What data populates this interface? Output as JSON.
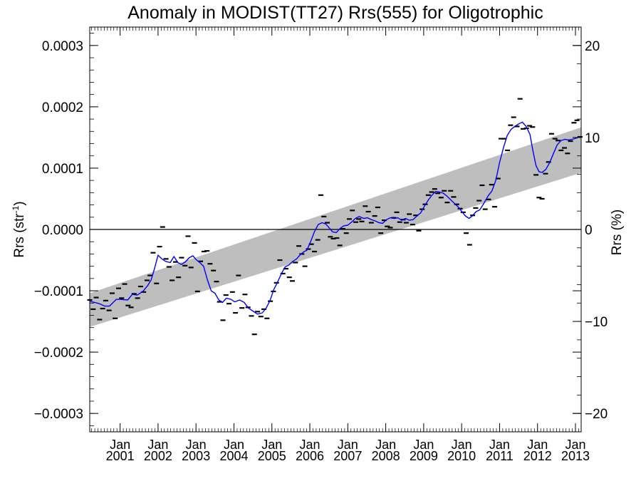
{
  "chart_data": {
    "type": "line",
    "title": "Anomaly in MODIST(TT27) Rrs(555) for Oligotrophic",
    "ylabel_left": "Rrs (str",
    "ylabel_left_sup": "-1",
    "ylabel_left_close": ")",
    "ylabel_right": "Rrs (%)",
    "xlim": [
      2000.2,
      2013.15
    ],
    "ylim": [
      -0.00033,
      0.00033
    ],
    "y2lim": [
      -22,
      22
    ],
    "yticks": [
      {
        "value": 0.0003,
        "label": "0.0003"
      },
      {
        "value": 0.0002,
        "label": "0.0002"
      },
      {
        "value": 0.0001,
        "label": "0.0001"
      },
      {
        "value": 0.0,
        "label": "0.0000"
      },
      {
        "value": -0.0001,
        "label": "−0.0001"
      },
      {
        "value": -0.0002,
        "label": "−0.0002"
      },
      {
        "value": -0.0003,
        "label": "−0.0003"
      }
    ],
    "y2ticks": [
      {
        "value": 20,
        "label": "20"
      },
      {
        "value": 10,
        "label": "10"
      },
      {
        "value": 0,
        "label": "0"
      },
      {
        "value": -10,
        "label": "−10"
      },
      {
        "value": -20,
        "label": "−20"
      }
    ],
    "xticks": [
      {
        "value": 2001,
        "month": "Jan",
        "year": "2001"
      },
      {
        "value": 2002,
        "month": "Jan",
        "year": "2002"
      },
      {
        "value": 2003,
        "month": "Jan",
        "year": "2003"
      },
      {
        "value": 2004,
        "month": "Jan",
        "year": "2004"
      },
      {
        "value": 2005,
        "month": "Jan",
        "year": "2005"
      },
      {
        "value": 2006,
        "month": "Jan",
        "year": "2006"
      },
      {
        "value": 2007,
        "month": "Jan",
        "year": "2007"
      },
      {
        "value": 2008,
        "month": "Jan",
        "year": "2008"
      },
      {
        "value": 2009,
        "month": "Jan",
        "year": "2009"
      },
      {
        "value": 2010,
        "month": "Jan",
        "year": "2010"
      },
      {
        "value": 2011,
        "month": "Jan",
        "year": "2011"
      },
      {
        "value": 2012,
        "month": "Jan",
        "year": "2012"
      },
      {
        "value": 2013,
        "month": "Jan",
        "year": "2013"
      }
    ],
    "zero_line": 0.0,
    "band": {
      "color": "#bebebe",
      "start": {
        "x": 2000.2,
        "low": -0.000159,
        "high": -0.000104
      },
      "end": {
        "x": 2013.15,
        "low": 9.25e-05,
        "high": 0.0001665
      }
    },
    "monthly_points": {
      "color": "#000000",
      "values": [
        [
          2000.2,
          -0.000115
        ],
        [
          2000.29,
          -0.00013
        ],
        [
          2000.37,
          -0.000111
        ],
        [
          2000.46,
          -0.000147
        ],
        [
          2000.54,
          -0.000129
        ],
        [
          2000.62,
          -0.000116
        ],
        [
          2000.71,
          -0.000132
        ],
        [
          2000.79,
          -0.000104
        ],
        [
          2000.87,
          -0.000145
        ],
        [
          2000.96,
          -9.6e-05
        ],
        [
          2001.04,
          -0.000112
        ],
        [
          2001.12,
          -8.9e-05
        ],
        [
          2001.21,
          -0.000124
        ],
        [
          2001.29,
          -0.000127
        ],
        [
          2001.37,
          -0.000105
        ],
        [
          2001.46,
          -0.000112
        ],
        [
          2001.54,
          -9.3e-05
        ],
        [
          2001.62,
          -0.000102
        ],
        [
          2001.71,
          -8.3e-05
        ],
        [
          2001.79,
          -7.5e-05
        ],
        [
          2001.87,
          -3.8e-05
        ],
        [
          2001.96,
          -8.8e-05
        ],
        [
          2002.04,
          -2.8e-05
        ],
        [
          2002.12,
          4e-06
        ],
        [
          2002.21,
          -4.8e-05
        ],
        [
          2002.29,
          -6.1e-05
        ],
        [
          2002.37,
          -8.3e-05
        ],
        [
          2002.46,
          -5.3e-05
        ],
        [
          2002.54,
          -7.8e-05
        ],
        [
          2002.62,
          -4.6e-05
        ],
        [
          2002.71,
          -5.9e-05
        ],
        [
          2002.79,
          -1.1e-05
        ],
        [
          2002.87,
          -6.2e-05
        ],
        [
          2002.96,
          -2.2e-05
        ],
        [
          2003.04,
          -0.000101
        ],
        [
          2003.12,
          -5.2e-05
        ],
        [
          2003.21,
          -3.6e-05
        ],
        [
          2003.29,
          -3.5e-05
        ],
        [
          2003.37,
          -5.6e-05
        ],
        [
          2003.46,
          -6.7e-05
        ],
        [
          2003.54,
          -8.5e-05
        ],
        [
          2003.62,
          -0.000118
        ],
        [
          2003.71,
          -0.000148
        ],
        [
          2003.79,
          -0.000107
        ],
        [
          2003.87,
          -0.000121
        ],
        [
          2003.96,
          -0.000102
        ],
        [
          2004.04,
          -0.000136
        ],
        [
          2004.12,
          -7.5e-05
        ],
        [
          2004.21,
          -0.000128
        ],
        [
          2004.29,
          -0.000106
        ],
        [
          2004.37,
          -0.000127
        ],
        [
          2004.46,
          -0.000141
        ],
        [
          2004.54,
          -0.000171
        ],
        [
          2004.62,
          -0.000134
        ],
        [
          2004.71,
          -0.000142
        ],
        [
          2004.79,
          -0.00013
        ],
        [
          2004.87,
          -0.000145
        ],
        [
          2004.96,
          -0.000117
        ],
        [
          2005.04,
          -0.000101
        ],
        [
          2005.12,
          -8.7e-05
        ],
        [
          2005.21,
          -5e-05
        ],
        [
          2005.29,
          -7.2e-05
        ],
        [
          2005.37,
          -6.4e-05
        ],
        [
          2005.46,
          -7.8e-05
        ],
        [
          2005.54,
          -8.4e-05
        ],
        [
          2005.62,
          -5.4e-05
        ],
        [
          2005.71,
          -2.7e-05
        ],
        [
          2005.79,
          -4e-05
        ],
        [
          2005.87,
          -6e-05
        ],
        [
          2005.96,
          -3.2e-05
        ],
        [
          2006.04,
          -2.4e-05
        ],
        [
          2006.12,
          -3.6e-05
        ],
        [
          2006.21,
          -1.7e-05
        ],
        [
          2006.29,
          5.6e-05
        ],
        [
          2006.37,
          2.1e-05
        ],
        [
          2006.46,
          1.1e-05
        ],
        [
          2006.54,
          -1.2e-05
        ],
        [
          2006.62,
          -1.5e-05
        ],
        [
          2006.71,
          -1.4e-05
        ],
        [
          2006.79,
          -2.6e-05
        ],
        [
          2006.87,
          1e-06
        ],
        [
          2006.96,
          -6e-06
        ],
        [
          2007.04,
          1.7e-05
        ],
        [
          2007.12,
          3.1e-05
        ],
        [
          2007.21,
          1.2e-05
        ],
        [
          2007.29,
          1.7e-05
        ],
        [
          2007.37,
          1.3e-05
        ],
        [
          2007.46,
          3.8e-05
        ],
        [
          2007.54,
          2.9e-05
        ],
        [
          2007.62,
          1.1e-05
        ],
        [
          2007.71,
          2.2e-05
        ],
        [
          2007.79,
          3.6e-05
        ],
        [
          2007.87,
          -6e-06
        ],
        [
          2007.96,
          1.5e-05
        ],
        [
          2008.04,
          5e-06
        ],
        [
          2008.12,
          3e-06
        ],
        [
          2008.21,
          1.9e-05
        ],
        [
          2008.29,
          2.8e-05
        ],
        [
          2008.37,
          1.2e-05
        ],
        [
          2008.46,
          1.6e-05
        ],
        [
          2008.54,
          1.1e-05
        ],
        [
          2008.62,
          2.5e-05
        ],
        [
          2008.71,
          8e-06
        ],
        [
          2008.79,
          2.3e-05
        ],
        [
          2008.87,
          -2e-06
        ],
        [
          2008.96,
          3.3e-05
        ],
        [
          2009.04,
          4.1e-05
        ],
        [
          2009.12,
          5.6e-05
        ],
        [
          2009.21,
          6.1e-05
        ],
        [
          2009.29,
          6.6e-05
        ],
        [
          2009.37,
          5.9e-05
        ],
        [
          2009.46,
          5.2e-05
        ],
        [
          2009.54,
          6.3e-05
        ],
        [
          2009.62,
          4.4e-05
        ],
        [
          2009.71,
          6.3e-05
        ],
        [
          2009.79,
          5.3e-05
        ],
        [
          2009.87,
          4.1e-05
        ],
        [
          2009.96,
          3.4e-05
        ],
        [
          2010.04,
          2.8e-05
        ],
        [
          2010.12,
          -6e-06
        ],
        [
          2010.21,
          -2.5e-05
        ],
        [
          2010.29,
          2.3e-05
        ],
        [
          2010.37,
          3.5e-05
        ],
        [
          2010.46,
          4.7e-05
        ],
        [
          2010.54,
          7.2e-05
        ],
        [
          2010.62,
          3.3e-05
        ],
        [
          2010.71,
          4.9e-05
        ],
        [
          2010.79,
          7.3e-05
        ],
        [
          2010.87,
          3.7e-05
        ],
        [
          2010.96,
          8.3e-05
        ],
        [
          2011.04,
          0.000148
        ],
        [
          2011.12,
          0.000148
        ],
        [
          2011.21,
          0.000129
        ],
        [
          2011.29,
          0.00017
        ],
        [
          2011.37,
          0.000183
        ],
        [
          2011.46,
          0.000168
        ],
        [
          2011.54,
          0.000213
        ],
        [
          2011.62,
          0.000164
        ],
        [
          2011.71,
          0.000165
        ],
        [
          2011.79,
          0.000169
        ],
        [
          2011.87,
          0.000167
        ],
        [
          2011.96,
          8.9e-05
        ],
        [
          2012.04,
          5.2e-05
        ],
        [
          2012.12,
          5e-05
        ],
        [
          2012.21,
          9.1e-05
        ],
        [
          2012.29,
          0.00011
        ],
        [
          2012.37,
          0.000156
        ],
        [
          2012.46,
          0.000148
        ],
        [
          2012.54,
          0.000145
        ],
        [
          2012.62,
          0.000129
        ],
        [
          2012.71,
          0.000133
        ],
        [
          2012.79,
          0.000124
        ],
        [
          2012.87,
          0.000144
        ],
        [
          2012.96,
          0.000174
        ],
        [
          2013.04,
          0.000178
        ],
        [
          2013.12,
          0.000151
        ]
      ]
    },
    "smoothed_line": {
      "color": "#0000ff",
      "values": [
        [
          2000.2,
          -0.000117
        ],
        [
          2000.45,
          -0.000121
        ],
        [
          2000.6,
          -0.000125
        ],
        [
          2000.72,
          -0.000125
        ],
        [
          2000.9,
          -0.000114
        ],
        [
          2001.0,
          -0.000114
        ],
        [
          2001.2,
          -0.000115
        ],
        [
          2001.32,
          -0.000106
        ],
        [
          2001.45,
          -0.000107
        ],
        [
          2001.6,
          -0.000101
        ],
        [
          2001.72,
          -9.2e-05
        ],
        [
          2001.82,
          -8.2e-05
        ],
        [
          2001.92,
          -6.1e-05
        ],
        [
          2002.0,
          -4.2e-05
        ],
        [
          2002.1,
          -4.8e-05
        ],
        [
          2002.2,
          -5.2e-05
        ],
        [
          2002.32,
          -5.4e-05
        ],
        [
          2002.42,
          -4.4e-05
        ],
        [
          2002.52,
          -5.4e-05
        ],
        [
          2002.62,
          -5.7e-05
        ],
        [
          2002.72,
          -5.3e-05
        ],
        [
          2002.82,
          -4.6e-05
        ],
        [
          2002.92,
          -4.3e-05
        ],
        [
          2003.0,
          -4.9e-05
        ],
        [
          2003.1,
          -5.4e-05
        ],
        [
          2003.2,
          -6e-05
        ],
        [
          2003.3,
          -8.2e-05
        ],
        [
          2003.4,
          -0.0001
        ],
        [
          2003.5,
          -0.000104
        ],
        [
          2003.6,
          -0.000115
        ],
        [
          2003.7,
          -0.000119
        ],
        [
          2003.8,
          -0.000112
        ],
        [
          2003.92,
          -0.000114
        ],
        [
          2004.02,
          -0.000118
        ],
        [
          2004.15,
          -0.000115
        ],
        [
          2004.27,
          -0.000119
        ],
        [
          2004.38,
          -0.000128
        ],
        [
          2004.5,
          -0.000133
        ],
        [
          2004.62,
          -0.000138
        ],
        [
          2004.75,
          -0.000136
        ],
        [
          2004.85,
          -0.000128
        ],
        [
          2004.95,
          -0.000116
        ],
        [
          2005.05,
          -9.8e-05
        ],
        [
          2005.15,
          -8.6e-05
        ],
        [
          2005.25,
          -7.2e-05
        ],
        [
          2005.35,
          -6.1e-05
        ],
        [
          2005.45,
          -5.8e-05
        ],
        [
          2005.55,
          -5.2e-05
        ],
        [
          2005.65,
          -4.8e-05
        ],
        [
          2005.75,
          -4.1e-05
        ],
        [
          2005.85,
          -3.6e-05
        ],
        [
          2005.92,
          -3.4e-05
        ],
        [
          2006.02,
          -2e-05
        ],
        [
          2006.12,
          -4e-06
        ],
        [
          2006.22,
          8e-06
        ],
        [
          2006.32,
          1.1e-05
        ],
        [
          2006.42,
          9e-06
        ],
        [
          2006.52,
          2e-06
        ],
        [
          2006.6,
          -4e-06
        ],
        [
          2006.7,
          -5e-06
        ],
        [
          2006.8,
          2e-06
        ],
        [
          2006.9,
          6e-06
        ],
        [
          2007.0,
          7e-06
        ],
        [
          2007.1,
          1.2e-05
        ],
        [
          2007.2,
          1.8e-05
        ],
        [
          2007.3,
          2.1e-05
        ],
        [
          2007.42,
          1.8e-05
        ],
        [
          2007.52,
          1.9e-05
        ],
        [
          2007.62,
          1.6e-05
        ],
        [
          2007.72,
          1.4e-05
        ],
        [
          2007.82,
          1.1e-05
        ],
        [
          2007.92,
          1e-05
        ],
        [
          2008.02,
          1.6e-05
        ],
        [
          2008.12,
          1.9e-05
        ],
        [
          2008.22,
          1.8e-05
        ],
        [
          2008.32,
          1.9e-05
        ],
        [
          2008.42,
          1.5e-05
        ],
        [
          2008.52,
          1.8e-05
        ],
        [
          2008.62,
          1.5e-05
        ],
        [
          2008.72,
          1.6e-05
        ],
        [
          2008.82,
          2.2e-05
        ],
        [
          2008.92,
          2.7e-05
        ],
        [
          2009.02,
          3.8e-05
        ],
        [
          2009.12,
          4.8e-05
        ],
        [
          2009.22,
          5.6e-05
        ],
        [
          2009.32,
          6.2e-05
        ],
        [
          2009.42,
          6.1e-05
        ],
        [
          2009.52,
          5.9e-05
        ],
        [
          2009.62,
          5.4e-05
        ],
        [
          2009.72,
          4.8e-05
        ],
        [
          2009.82,
          4.2e-05
        ],
        [
          2009.92,
          3.6e-05
        ],
        [
          2010.02,
          2.8e-05
        ],
        [
          2010.1,
          2.2e-05
        ],
        [
          2010.2,
          1.8e-05
        ],
        [
          2010.28,
          2.2e-05
        ],
        [
          2010.38,
          2.9e-05
        ],
        [
          2010.48,
          3.2e-05
        ],
        [
          2010.6,
          4.4e-05
        ],
        [
          2010.7,
          5.5e-05
        ],
        [
          2010.8,
          6.3e-05
        ],
        [
          2010.9,
          8e-05
        ],
        [
          2011.0,
          0.000109
        ],
        [
          2011.1,
          0.000133
        ],
        [
          2011.2,
          0.000153
        ],
        [
          2011.3,
          0.000163
        ],
        [
          2011.4,
          0.000168
        ],
        [
          2011.5,
          0.000172
        ],
        [
          2011.6,
          0.000175
        ],
        [
          2011.7,
          0.000168
        ],
        [
          2011.8,
          0.000155
        ],
        [
          2011.88,
          0.000128
        ],
        [
          2011.96,
          0.000104
        ],
        [
          2012.04,
          9.4e-05
        ],
        [
          2012.12,
          9.3e-05
        ],
        [
          2012.22,
          9.8e-05
        ],
        [
          2012.32,
          0.000109
        ],
        [
          2012.42,
          0.000124
        ],
        [
          2012.52,
          0.000138
        ],
        [
          2012.62,
          0.000145
        ],
        [
          2012.72,
          0.000147
        ],
        [
          2012.82,
          0.000146
        ],
        [
          2012.92,
          0.000147
        ],
        [
          2013.02,
          0.000149
        ],
        [
          2013.12,
          0.000151
        ]
      ]
    }
  }
}
